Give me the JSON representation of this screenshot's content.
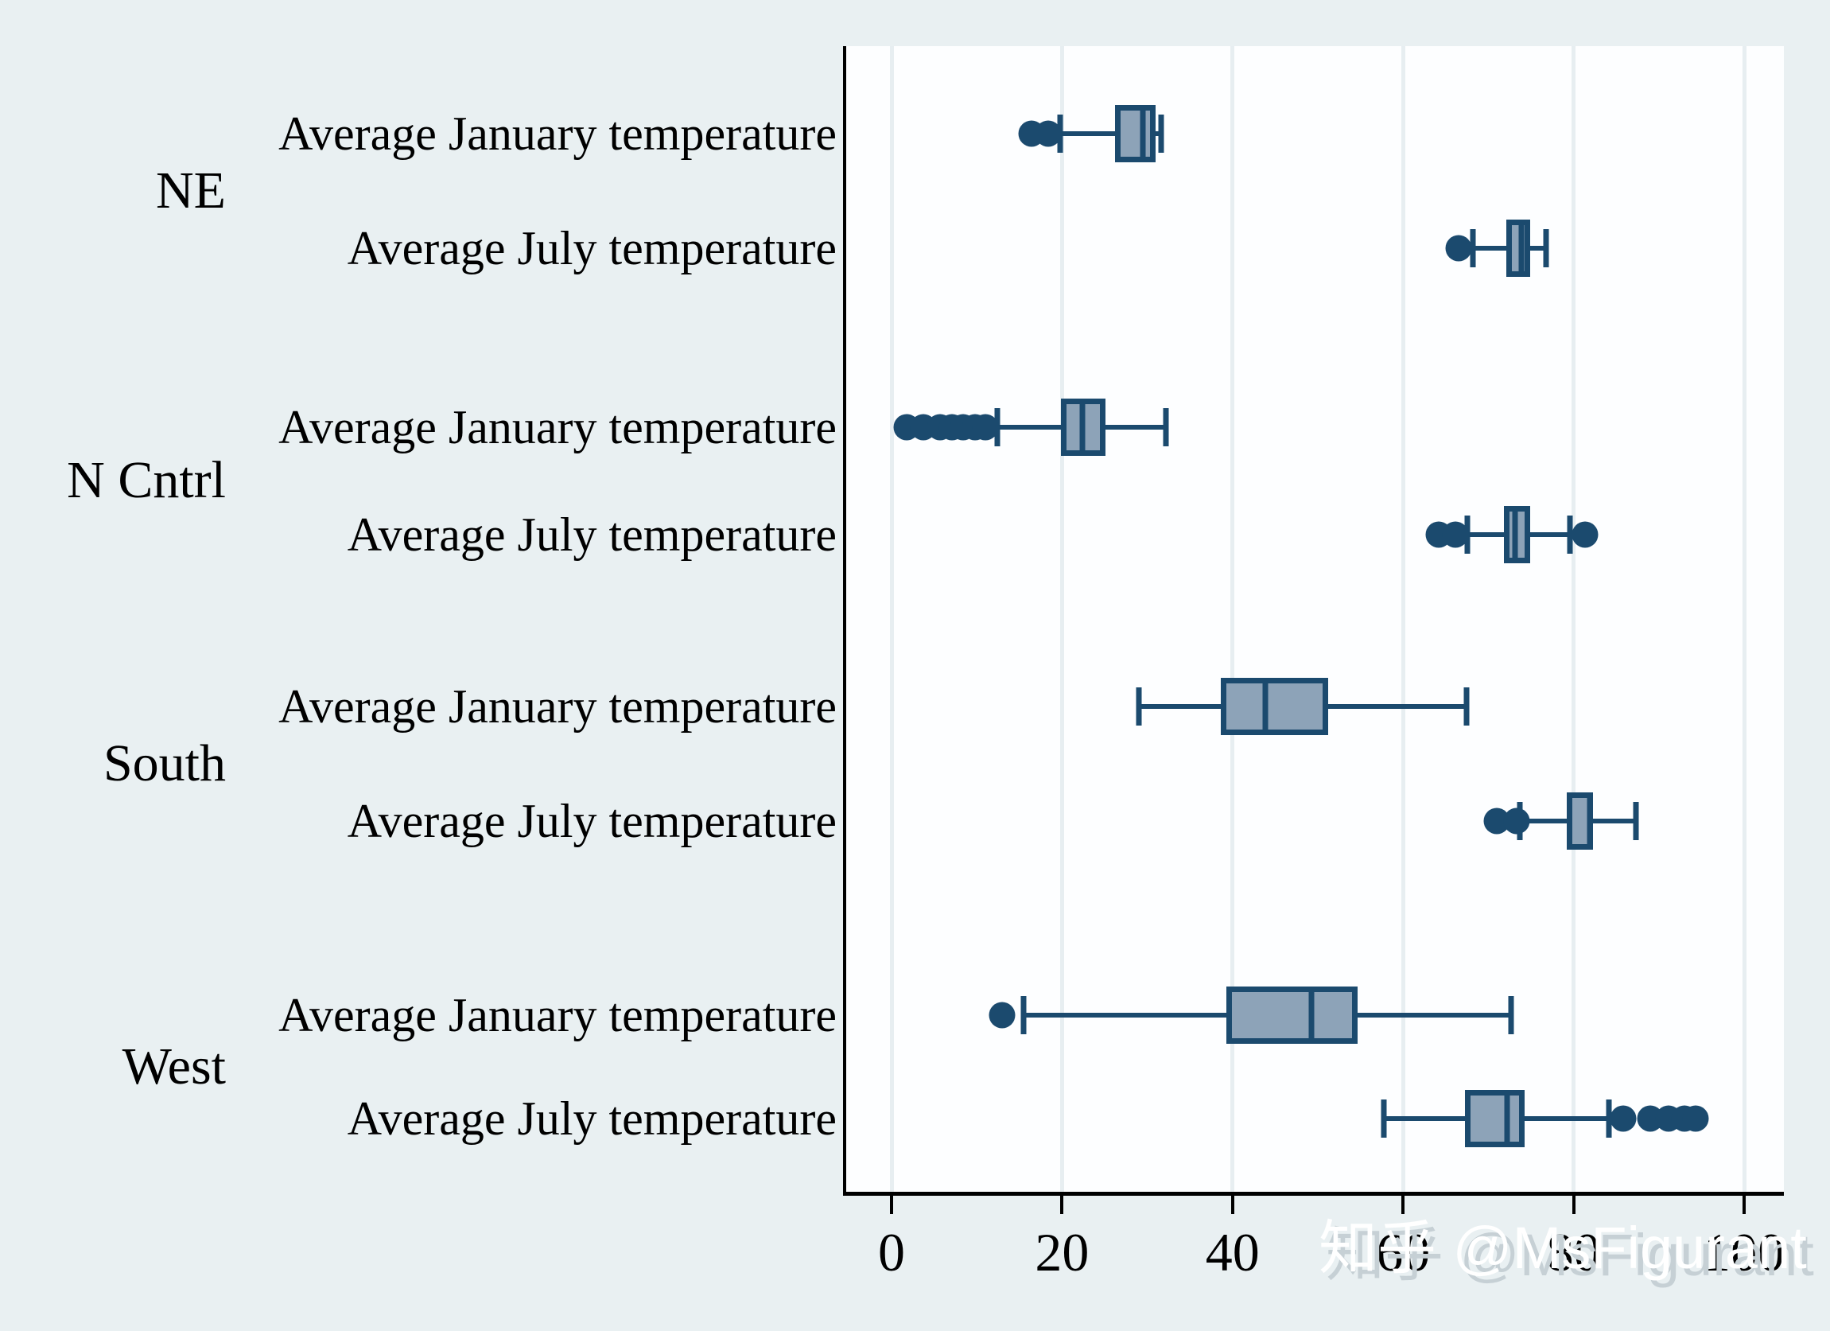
{
  "figure": {
    "watermark": "知乎 @MsFigurant"
  },
  "colors": {
    "page_background": "#e9f0f2",
    "plot_background": "#fdfeff",
    "gridline": "#e7eef1",
    "axis": "#000000",
    "box_fill": "#8da3b8",
    "box_stroke": "#1b4a6e",
    "outlier": "#1b4a6e",
    "watermark_text": "#ffffff",
    "watermark_shadow": "#c6d0d5"
  },
  "chart_data": {
    "type": "boxplot-horizontal",
    "title": "",
    "xlabel": "",
    "x_ticks": [
      0,
      20,
      40,
      60,
      80,
      100
    ],
    "xlim": [
      -5.3,
      104.7
    ],
    "grid": true,
    "row_label_january": "Average January temperature",
    "row_label_july": "Average July temperature",
    "groups": [
      {
        "label": "NE",
        "rows": [
          {
            "label": "Average January temperature",
            "outliers_low": [
              16.4,
              18.4
            ],
            "whisker_low": 19.8,
            "q1": 26.2,
            "median": 29.5,
            "q3": 31.0,
            "whisker_high": 31.6,
            "outliers_high": []
          },
          {
            "label": "Average July temperature",
            "outliers_low": [
              66.5
            ],
            "whisker_low": 68.2,
            "q1": 72.1,
            "median": 73.9,
            "q3": 74.9,
            "whisker_high": 76.8,
            "outliers_high": []
          }
        ]
      },
      {
        "label": "N Cntrl",
        "rows": [
          {
            "label": "Average January temperature",
            "outliers_low": [
              1.8,
              3.7,
              5.7,
              7.1,
              8.4,
              9.8,
              11.0
            ],
            "whisker_low": 12.4,
            "q1": 19.9,
            "median": 22.4,
            "q3": 25.1,
            "whisker_high": 32.2,
            "outliers_high": []
          },
          {
            "label": "Average July temperature",
            "outliers_low": [
              64.2,
              66.1
            ],
            "whisker_low": 67.5,
            "q1": 71.8,
            "median": 73.1,
            "q3": 74.9,
            "whisker_high": 79.6,
            "outliers_high": [
              81.3
            ]
          }
        ]
      },
      {
        "label": "South",
        "rows": [
          {
            "label": "Average January temperature",
            "outliers_low": [],
            "whisker_low": 29.0,
            "q1": 38.6,
            "median": 43.8,
            "q3": 51.2,
            "whisker_high": 67.4,
            "outliers_high": []
          },
          {
            "label": "Average July temperature",
            "outliers_low": [
              71.0,
              73.3
            ],
            "whisker_low": 73.7,
            "q1": 79.2,
            "median": 81.9,
            "q3": 82.3,
            "whisker_high": 87.3,
            "outliers_high": []
          }
        ]
      },
      {
        "label": "West",
        "rows": [
          {
            "label": "Average January temperature",
            "outliers_low": [
              13.0
            ],
            "whisker_low": 15.5,
            "q1": 39.3,
            "median": 49.3,
            "q3": 54.7,
            "whisker_high": 72.7,
            "outliers_high": []
          },
          {
            "label": "Average July temperature",
            "outliers_low": [],
            "whisker_low": 57.7,
            "q1": 67.3,
            "median": 72.2,
            "q3": 74.3,
            "whisker_high": 84.1,
            "outliers_high": [
              85.8,
              89.0,
              91.1,
              93.0,
              94.3
            ]
          }
        ]
      }
    ]
  }
}
